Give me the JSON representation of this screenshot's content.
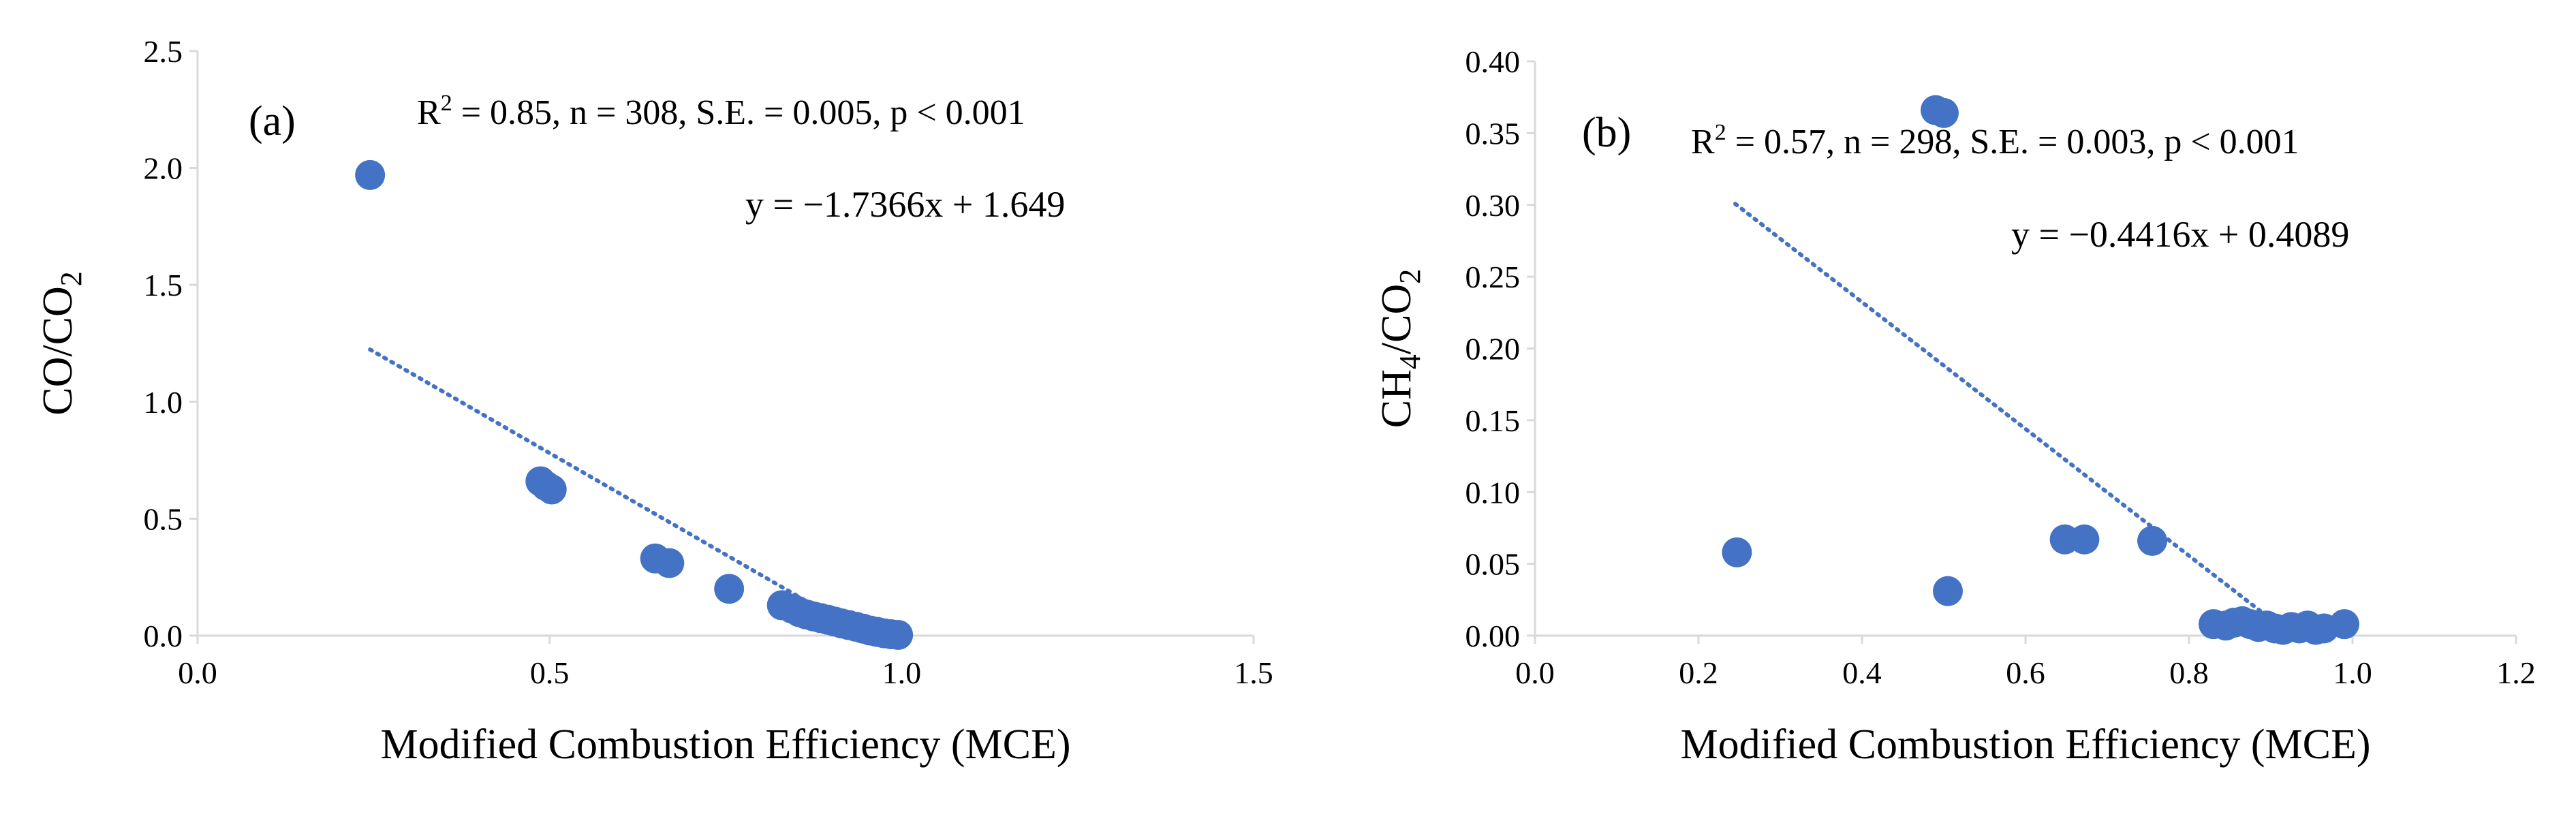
{
  "colors": {
    "marker": "#4472C4",
    "trendline": "#4472C4",
    "axis": "#D9D9D9",
    "text": "#000000"
  },
  "chart_data": [
    {
      "type": "scatter",
      "panel_label": "(a)",
      "xlabel": "Modified Combustion Efficiency (MCE)",
      "ylabel": "CO/CO",
      "ylabel_sub": "2",
      "xlim": [
        0,
        1.5
      ],
      "ylim": [
        0,
        2.5
      ],
      "xticks": [
        "0.0",
        "0.5",
        "1.0",
        "1.5"
      ],
      "yticks": [
        "0.0",
        "0.5",
        "1.0",
        "1.5",
        "2.0",
        "2.5"
      ],
      "stats_prefix": "R",
      "stats_sup": "2",
      "stats_rest": " = 0.85, n = 308, S.E. = 0.005, p < 0.001",
      "equation": "y = −1.7366x + 1.649",
      "trendline": {
        "slope": -1.7366,
        "intercept": 1.649,
        "x_range": [
          0.245,
          0.949
        ]
      },
      "points": [
        [
          0.245,
          1.97
        ],
        [
          0.487,
          0.66
        ],
        [
          0.495,
          0.64
        ],
        [
          0.503,
          0.625
        ],
        [
          0.65,
          0.33
        ],
        [
          0.67,
          0.31
        ],
        [
          0.755,
          0.2
        ],
        [
          0.83,
          0.13
        ],
        [
          0.845,
          0.115
        ],
        [
          0.855,
          0.1
        ],
        [
          0.865,
          0.09
        ],
        [
          0.875,
          0.082
        ],
        [
          0.885,
          0.075
        ],
        [
          0.895,
          0.068
        ],
        [
          0.905,
          0.06
        ],
        [
          0.915,
          0.052
        ],
        [
          0.925,
          0.045
        ],
        [
          0.935,
          0.038
        ],
        [
          0.945,
          0.03
        ],
        [
          0.955,
          0.022
        ],
        [
          0.965,
          0.016
        ],
        [
          0.975,
          0.01
        ],
        [
          0.985,
          0.006
        ],
        [
          0.995,
          0.003
        ]
      ]
    },
    {
      "type": "scatter",
      "panel_label": "(b)",
      "xlabel": "Modified Combustion Efficiency (MCE)",
      "ylabel": "CH",
      "ylabel_sub": "4",
      "ylabel_mid": "/CO",
      "ylabel_sub2": "2",
      "xlim": [
        0,
        1.2
      ],
      "ylim": [
        0,
        0.4
      ],
      "xticks": [
        "0.0",
        "0.2",
        "0.4",
        "0.6",
        "0.8",
        "1.0",
        "1.2"
      ],
      "yticks": [
        "0.00",
        "0.05",
        "0.10",
        "0.15",
        "0.20",
        "0.25",
        "0.30",
        "0.35",
        "0.40"
      ],
      "stats_prefix": "R",
      "stats_sup": "2",
      "stats_rest": " = 0.57, n = 298, S.E. = 0.003, p < 0.001",
      "equation": "y = −0.4416x + 0.4089",
      "trendline": {
        "slope": -0.4416,
        "intercept": 0.4089,
        "x_range": [
          0.245,
          0.925
        ]
      },
      "points": [
        [
          0.247,
          0.058
        ],
        [
          0.49,
          0.366
        ],
        [
          0.5,
          0.364
        ],
        [
          0.505,
          0.031
        ],
        [
          0.648,
          0.067
        ],
        [
          0.672,
          0.067
        ],
        [
          0.755,
          0.066
        ],
        [
          0.83,
          0.008
        ],
        [
          0.845,
          0.007
        ],
        [
          0.855,
          0.009
        ],
        [
          0.865,
          0.01
        ],
        [
          0.875,
          0.008
        ],
        [
          0.885,
          0.006
        ],
        [
          0.895,
          0.007
        ],
        [
          0.905,
          0.005
        ],
        [
          0.915,
          0.004
        ],
        [
          0.925,
          0.006
        ],
        [
          0.935,
          0.005
        ],
        [
          0.945,
          0.007
        ],
        [
          0.955,
          0.004
        ],
        [
          0.965,
          0.005
        ],
        [
          0.99,
          0.008
        ]
      ]
    }
  ]
}
